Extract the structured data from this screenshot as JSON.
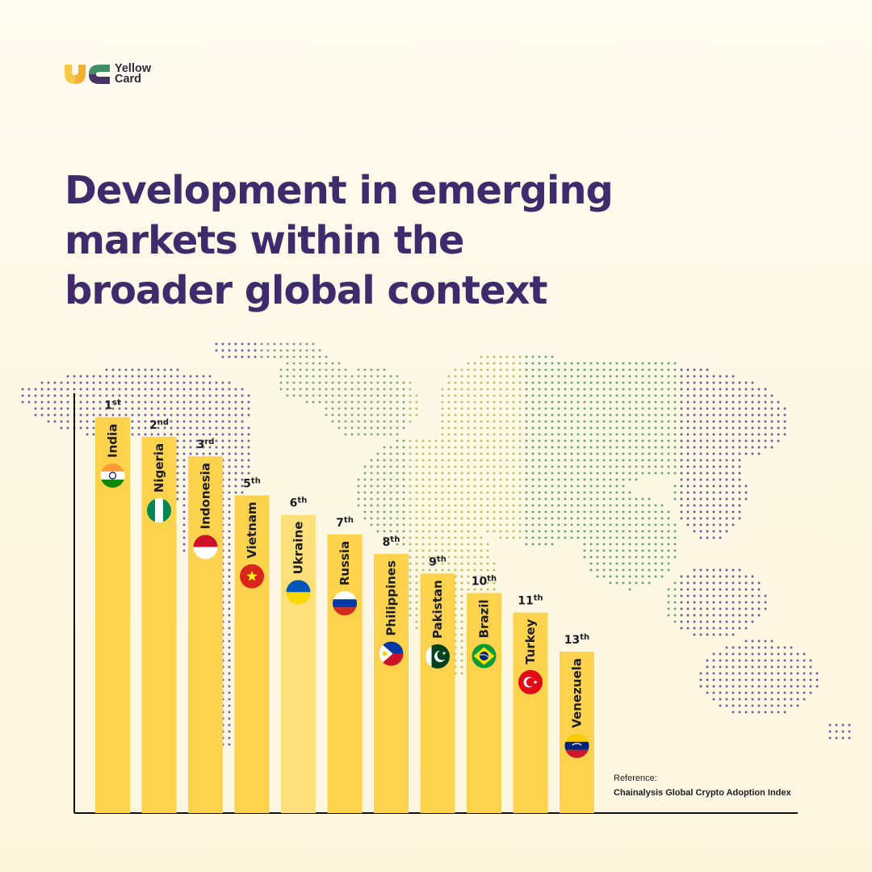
{
  "brand": {
    "name": "Yellow\nCard",
    "colors": {
      "yellow": "#f7c948",
      "green": "#3f8f63",
      "purple": "#473264"
    }
  },
  "headline": {
    "line1": "Development in emerging",
    "line2": "markets within the",
    "line3": "broader global context"
  },
  "reference": {
    "label": "Reference:",
    "source": "Chainalysis Global Crypto Adoption Index"
  },
  "chart_data": {
    "type": "bar",
    "title": "Development in emerging markets within the broader global context",
    "xlabel": "",
    "ylabel": "",
    "value_meaning": "rank in Chainalysis Global Crypto Adoption Index (bar height decreases as rank number increases)",
    "categories": [
      "India",
      "Nigeria",
      "Indonesia",
      "Vietnam",
      "Ukraine",
      "Russia",
      "Philippines",
      "Pakistan",
      "Brazil",
      "Turkey",
      "Venezuela"
    ],
    "ranks": [
      1,
      2,
      3,
      5,
      6,
      7,
      8,
      9,
      10,
      11,
      13
    ],
    "rank_numbers": [
      "1",
      "2",
      "3",
      "5",
      "6",
      "7",
      "8",
      "9",
      "10",
      "11",
      "13"
    ],
    "rank_suffixes": [
      "st",
      "nd",
      "rd",
      "th",
      "th",
      "th",
      "th",
      "th",
      "th",
      "th",
      "th"
    ],
    "bar_color": "#fdd34d",
    "highlight_color": "#fde07a",
    "highlight": "Ukraine",
    "flag_icons": [
      "india-flag-icon",
      "nigeria-flag-icon",
      "indonesia-flag-icon",
      "vietnam-flag-icon",
      "ukraine-flag-icon",
      "russia-flag-icon",
      "philippines-flag-icon",
      "pakistan-flag-icon",
      "brazil-flag-icon",
      "turkey-flag-icon",
      "venezuela-flag-icon"
    ]
  }
}
